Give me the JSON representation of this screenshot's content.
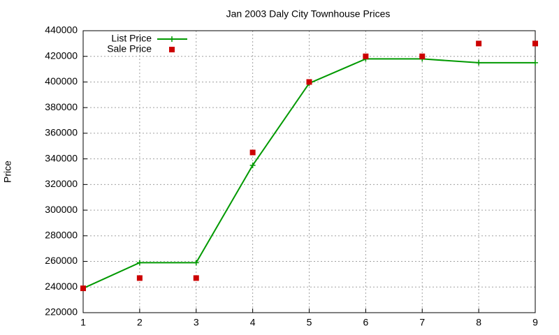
{
  "chart_data": {
    "type": "line",
    "title": "Jan 2003 Daly City Townhouse Prices",
    "y_label": "Price",
    "x": [
      1,
      2,
      3,
      4,
      5,
      6,
      7,
      8,
      9
    ],
    "xlim": [
      1,
      9
    ],
    "xticks": [
      1,
      2,
      3,
      4,
      5,
      6,
      7,
      8,
      9
    ],
    "ylim": [
      220000,
      440000
    ],
    "yticks": [
      220000,
      240000,
      260000,
      280000,
      300000,
      320000,
      340000,
      360000,
      380000,
      400000,
      420000,
      440000
    ],
    "grid": true,
    "legend": "top-left",
    "series": [
      {
        "name": "List Price",
        "color": "#009900",
        "mode": "linespoints",
        "values": [
          239000,
          259000,
          259000,
          335000,
          399000,
          418000,
          418000,
          415000,
          415000
        ]
      },
      {
        "name": "Sale Price",
        "color": "#cc0000",
        "mode": "points",
        "values": [
          239000,
          247000,
          247000,
          345000,
          400000,
          420000,
          420000,
          430000,
          430000
        ]
      }
    ]
  }
}
